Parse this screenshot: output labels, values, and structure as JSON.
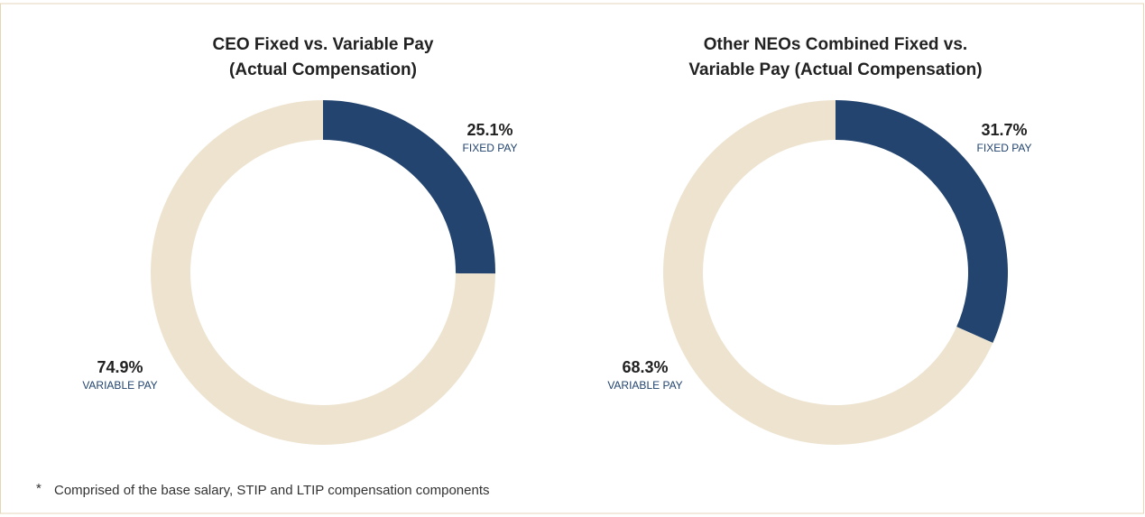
{
  "chart_data": [
    {
      "type": "donut",
      "title": [
        "CEO Fixed vs. Variable Pay",
        "(Actual Compensation)"
      ],
      "categories": [
        "FIXED PAY",
        "VARIABLE PAY"
      ],
      "values": [
        25.1,
        74.9
      ],
      "value_labels": [
        "25.1%",
        "74.9%"
      ],
      "colors": [
        "#22446f",
        "#ede3cf"
      ]
    },
    {
      "type": "donut",
      "title": [
        "Other NEOs Combined Fixed vs.",
        "Variable Pay (Actual Compensation)"
      ],
      "categories": [
        "FIXED PAY",
        "VARIABLE PAY"
      ],
      "values": [
        31.7,
        68.3
      ],
      "value_labels": [
        "31.7%",
        "68.3%"
      ],
      "colors": [
        "#22446f",
        "#ede3cf"
      ]
    }
  ],
  "footnote": {
    "marker": "*",
    "text": "Comprised of the base salary, STIP and LTIP compensation components"
  }
}
